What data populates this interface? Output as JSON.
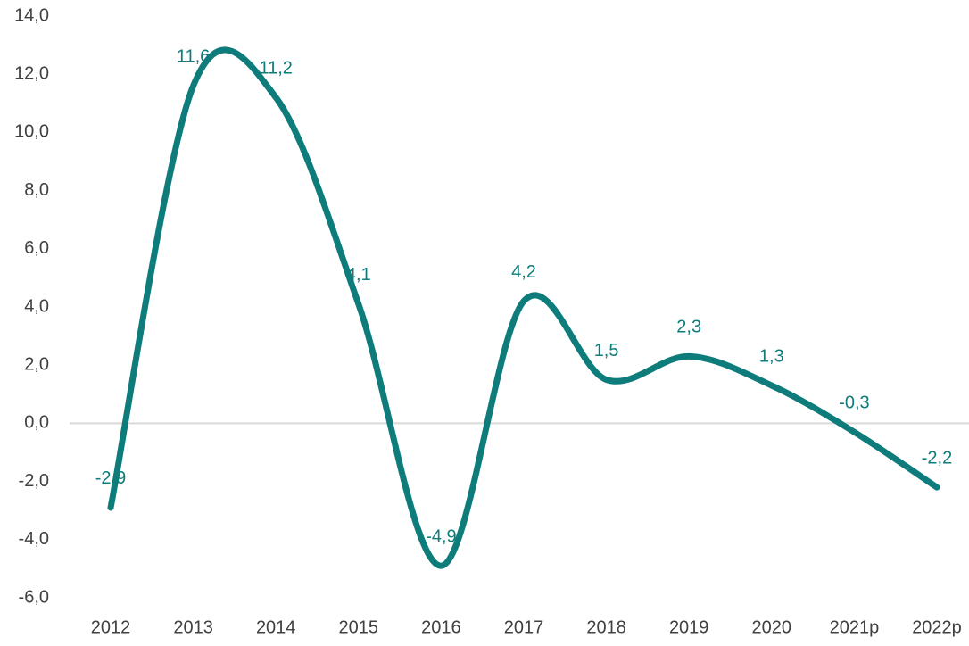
{
  "chart_data": {
    "type": "line",
    "categories": [
      "2012",
      "2013",
      "2014",
      "2015",
      "2016",
      "2017",
      "2018",
      "2019",
      "2020",
      "2021p",
      "2022p"
    ],
    "series": [
      {
        "color": "#0e7c7b",
        "values": [
          -2.9,
          11.6,
          11.2,
          4.1,
          -4.9,
          4.2,
          1.5,
          2.3,
          1.3,
          -0.3,
          -2.2
        ],
        "value_labels": [
          "-2,9",
          "11,6",
          "11,2",
          "4,1",
          "-4,9",
          "4,2",
          "1,5",
          "2,3",
          "1,3",
          "-0,3",
          "-2,2"
        ]
      }
    ],
    "ylim": [
      -6,
      14
    ],
    "yticks": [
      {
        "value": -6,
        "label": "-6,0"
      },
      {
        "value": -4,
        "label": "-4,0"
      },
      {
        "value": -2,
        "label": "-2,0"
      },
      {
        "value": 0,
        "label": "0,0"
      },
      {
        "value": 2,
        "label": "2,0"
      },
      {
        "value": 4,
        "label": "4,0"
      },
      {
        "value": 6,
        "label": "6,0"
      },
      {
        "value": 8,
        "label": "8,0"
      },
      {
        "value": 10,
        "label": "10,0"
      },
      {
        "value": 12,
        "label": "12,0"
      },
      {
        "value": 14,
        "label": "14,0"
      }
    ],
    "smooth": true
  }
}
